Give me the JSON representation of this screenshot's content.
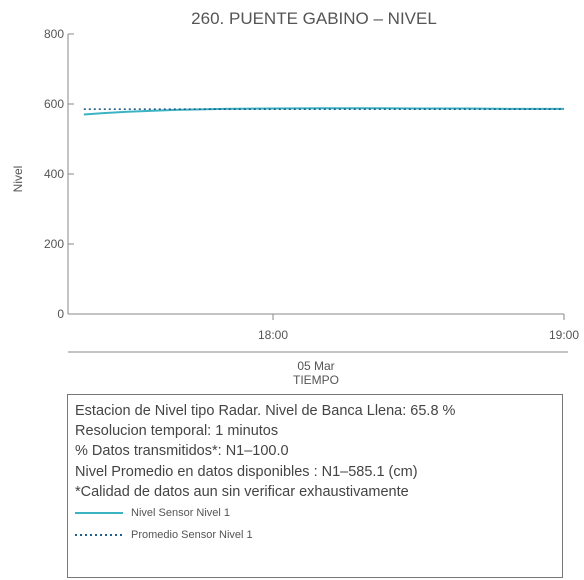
{
  "chart_data": {
    "type": "line",
    "title": "260. PUENTE GABINO – NIVEL",
    "ylabel": "Nivel",
    "xlabel": "TIEMPO",
    "date_label": "05 Mar",
    "ylim": [
      0,
      800
    ],
    "yticks": [
      0,
      200,
      400,
      600,
      800
    ],
    "xlim": [
      "17:20",
      "19:00"
    ],
    "xticks": [
      "18:00",
      "19:00"
    ],
    "grid": false,
    "series": [
      {
        "name": "Nivel Sensor Nivel 1",
        "style": "solid",
        "color": "#3bb3c3",
        "x": [
          "17:21",
          "17:25",
          "17:30",
          "17:40",
          "17:50",
          "18:00",
          "18:10",
          "18:20",
          "18:30",
          "18:40",
          "18:50",
          "19:00"
        ],
        "values": [
          570,
          574,
          578,
          583,
          586,
          587,
          588,
          588,
          587,
          587,
          586,
          586
        ]
      },
      {
        "name": "Promedio Sensor Nivel 1",
        "style": "dotted",
        "color": "#1f5f8b",
        "x": [
          "17:21",
          "19:00"
        ],
        "values": [
          585.1,
          585.1
        ]
      }
    ]
  },
  "info": {
    "lines": [
      "Estacion de Nivel tipo Radar. Nivel de Banca Llena: 65.8 %",
      "Resolucion temporal: 1 minutos",
      "% Datos transmitidos*: N1–100.0",
      "Nivel Promedio en datos disponibles : N1–585.1 (cm)",
      "*Calidad de datos aun sin verificar exhaustivamente"
    ]
  }
}
